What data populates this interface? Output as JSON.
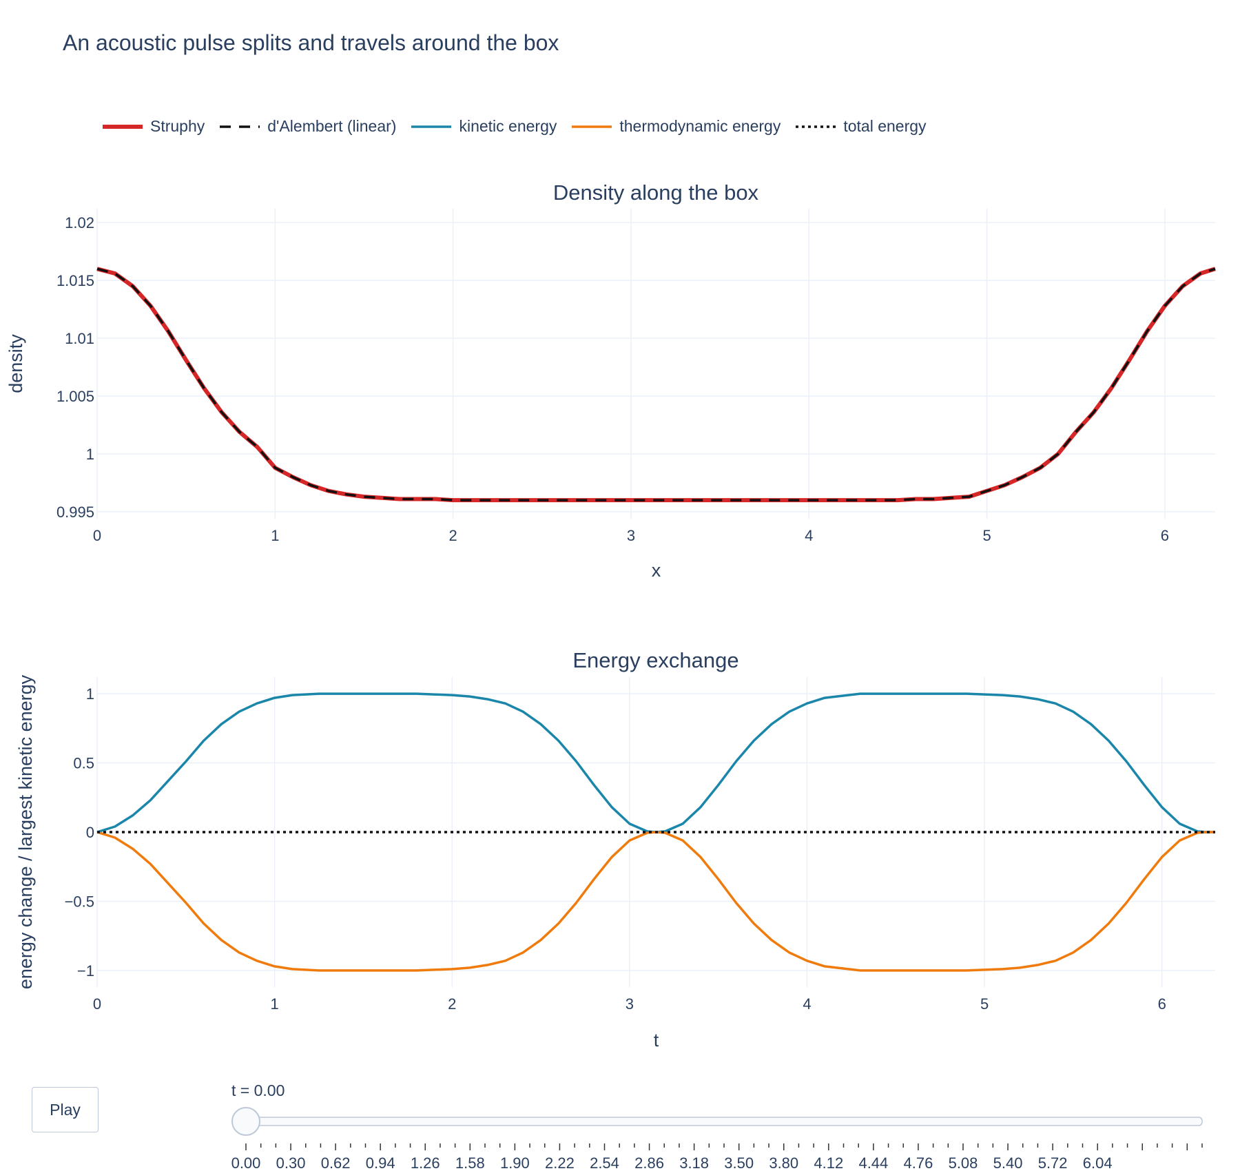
{
  "title": "An acoustic pulse splits and travels around the box",
  "legend": [
    {
      "label": "Struphy",
      "color": "#d62728",
      "dash": "solid"
    },
    {
      "label": "d'Alembert (linear)",
      "color": "#111111",
      "dash": "dash"
    },
    {
      "label": "kinetic energy",
      "color": "#1a86aa",
      "dash": "solid"
    },
    {
      "label": "thermodynamic energy",
      "color": "#f07b0d",
      "dash": "solid"
    },
    {
      "label": "total energy",
      "color": "#111111",
      "dash": "dot"
    }
  ],
  "controls": {
    "play_label": "Play",
    "slider_value": "t = 0.00",
    "slider_position": 0.0,
    "slider_labels": [
      "0.00",
      "0.30",
      "0.62",
      "0.94",
      "1.26",
      "1.58",
      "1.90",
      "2.22",
      "2.54",
      "2.86",
      "3.18",
      "3.50",
      "3.80",
      "4.12",
      "4.44",
      "4.76",
      "5.08",
      "5.40",
      "5.72",
      "6.04"
    ]
  },
  "chart_data": [
    {
      "type": "line",
      "title": "Density along the box",
      "xlabel": "x",
      "ylabel": "density",
      "xlim": [
        0,
        6.283
      ],
      "ylim": [
        0.9944,
        1.0212
      ],
      "xticks": [
        0,
        1,
        2,
        3,
        4,
        5,
        6
      ],
      "xtick_labels": [
        "0",
        "1",
        "2",
        "3",
        "4",
        "5",
        "6"
      ],
      "yticks": [
        0.995,
        1.0,
        1.005,
        1.01,
        1.015,
        1.02
      ],
      "ytick_labels": [
        "0.995",
        "1",
        "1.005",
        "1.01",
        "1.015",
        "1.02"
      ],
      "grid": true,
      "series": [
        {
          "name": "Struphy",
          "color": "#d62728",
          "dash": "solid",
          "x": [
            0,
            0.1,
            0.2,
            0.3,
            0.4,
            0.5,
            0.6,
            0.7,
            0.8,
            0.9,
            1.0,
            1.1,
            1.2,
            1.3,
            1.4,
            1.5,
            1.6,
            1.7,
            1.8,
            1.9,
            2.0,
            2.2,
            2.4,
            2.6,
            2.8,
            3.0,
            3.2,
            3.4,
            3.6,
            3.8,
            4.0,
            4.2,
            4.4,
            4.5,
            4.6,
            4.7,
            4.8,
            4.9,
            5.0,
            5.1,
            5.2,
            5.3,
            5.4,
            5.5,
            5.6,
            5.7,
            5.8,
            5.9,
            6.0,
            6.1,
            6.2,
            6.283
          ],
          "y": [
            1.016,
            1.0156,
            1.0145,
            1.0128,
            1.0106,
            1.0081,
            1.0057,
            1.0036,
            1.0019,
            1.0006,
            0.9988,
            0.998,
            0.9973,
            0.9968,
            0.9965,
            0.9963,
            0.9962,
            0.9961,
            0.9961,
            0.9961,
            0.996,
            0.996,
            0.996,
            0.996,
            0.996,
            0.996,
            0.996,
            0.996,
            0.996,
            0.996,
            0.996,
            0.996,
            0.996,
            0.996,
            0.9961,
            0.9961,
            0.9962,
            0.9963,
            0.9968,
            0.9973,
            0.998,
            0.9988,
            1.0,
            1.0019,
            1.0036,
            1.0057,
            1.0081,
            1.0106,
            1.0128,
            1.0145,
            1.0156,
            1.016
          ]
        },
        {
          "name": "d'Alembert (linear)",
          "color": "#111111",
          "dash": "dash",
          "x": [
            0,
            0.1,
            0.2,
            0.3,
            0.4,
            0.5,
            0.6,
            0.7,
            0.8,
            0.9,
            1.0,
            1.1,
            1.2,
            1.3,
            1.4,
            1.5,
            1.6,
            1.7,
            1.8,
            1.9,
            2.0,
            2.2,
            2.4,
            2.6,
            2.8,
            3.0,
            3.2,
            3.4,
            3.6,
            3.8,
            4.0,
            4.2,
            4.4,
            4.5,
            4.6,
            4.7,
            4.8,
            4.9,
            5.0,
            5.1,
            5.2,
            5.3,
            5.4,
            5.5,
            5.6,
            5.7,
            5.8,
            5.9,
            6.0,
            6.1,
            6.2,
            6.283
          ],
          "y": [
            1.016,
            1.0156,
            1.0145,
            1.0128,
            1.0106,
            1.0081,
            1.0057,
            1.0036,
            1.0019,
            1.0006,
            0.9988,
            0.998,
            0.9973,
            0.9968,
            0.9965,
            0.9963,
            0.9962,
            0.9961,
            0.9961,
            0.9961,
            0.996,
            0.996,
            0.996,
            0.996,
            0.996,
            0.996,
            0.996,
            0.996,
            0.996,
            0.996,
            0.996,
            0.996,
            0.996,
            0.996,
            0.9961,
            0.9961,
            0.9962,
            0.9963,
            0.9968,
            0.9973,
            0.998,
            0.9988,
            1.0,
            1.0019,
            1.0036,
            1.0057,
            1.0081,
            1.0106,
            1.0128,
            1.0145,
            1.0156,
            1.016
          ]
        }
      ]
    },
    {
      "type": "line",
      "title": "Energy exchange",
      "xlabel": "t",
      "ylabel": "energy change / largest kinetic energy",
      "xlim": [
        0,
        6.3
      ],
      "ylim": [
        -1.12,
        1.12
      ],
      "xticks": [
        0,
        1,
        2,
        3,
        4,
        5,
        6
      ],
      "xtick_labels": [
        "0",
        "1",
        "2",
        "3",
        "4",
        "5",
        "6"
      ],
      "yticks": [
        -1,
        -0.5,
        0,
        0.5,
        1
      ],
      "ytick_labels": [
        "−1",
        "−0.5",
        "0",
        "0.5",
        "1"
      ],
      "grid": true,
      "series": [
        {
          "name": "kinetic energy",
          "color": "#1a86aa",
          "dash": "solid",
          "x": [
            0,
            0.1,
            0.2,
            0.3,
            0.4,
            0.5,
            0.6,
            0.7,
            0.8,
            0.9,
            1.0,
            1.1,
            1.25,
            1.5,
            1.8,
            2.0,
            2.1,
            2.2,
            2.3,
            2.4,
            2.5,
            2.6,
            2.7,
            2.8,
            2.9,
            3.0,
            3.1,
            3.15,
            3.2,
            3.3,
            3.4,
            3.5,
            3.6,
            3.7,
            3.8,
            3.9,
            4.0,
            4.1,
            4.3,
            4.6,
            4.9,
            5.1,
            5.2,
            5.3,
            5.4,
            5.5,
            5.6,
            5.7,
            5.8,
            5.9,
            6.0,
            6.1,
            6.2,
            6.25,
            6.3
          ],
          "y": [
            0,
            0.04,
            0.12,
            0.23,
            0.37,
            0.51,
            0.66,
            0.78,
            0.87,
            0.93,
            0.97,
            0.99,
            1.0,
            1.0,
            1.0,
            0.99,
            0.98,
            0.96,
            0.93,
            0.87,
            0.78,
            0.66,
            0.51,
            0.34,
            0.18,
            0.06,
            0.005,
            0.0,
            0.005,
            0.06,
            0.18,
            0.34,
            0.51,
            0.66,
            0.78,
            0.87,
            0.93,
            0.97,
            1.0,
            1.0,
            1.0,
            0.99,
            0.98,
            0.96,
            0.93,
            0.87,
            0.78,
            0.66,
            0.51,
            0.34,
            0.18,
            0.06,
            0.005,
            0.0,
            0.0
          ]
        },
        {
          "name": "thermodynamic energy",
          "color": "#f07b0d",
          "dash": "solid",
          "x": [
            0,
            0.1,
            0.2,
            0.3,
            0.4,
            0.5,
            0.6,
            0.7,
            0.8,
            0.9,
            1.0,
            1.1,
            1.25,
            1.5,
            1.8,
            2.0,
            2.1,
            2.2,
            2.3,
            2.4,
            2.5,
            2.6,
            2.7,
            2.8,
            2.9,
            3.0,
            3.1,
            3.15,
            3.2,
            3.3,
            3.4,
            3.5,
            3.6,
            3.7,
            3.8,
            3.9,
            4.0,
            4.1,
            4.3,
            4.6,
            4.9,
            5.1,
            5.2,
            5.3,
            5.4,
            5.5,
            5.6,
            5.7,
            5.8,
            5.9,
            6.0,
            6.1,
            6.2,
            6.25,
            6.3
          ],
          "y": [
            0,
            -0.04,
            -0.12,
            -0.23,
            -0.37,
            -0.51,
            -0.66,
            -0.78,
            -0.87,
            -0.93,
            -0.97,
            -0.99,
            -1.0,
            -1.0,
            -1.0,
            -0.99,
            -0.98,
            -0.96,
            -0.93,
            -0.87,
            -0.78,
            -0.66,
            -0.51,
            -0.34,
            -0.18,
            -0.06,
            -0.005,
            0.0,
            -0.005,
            -0.06,
            -0.18,
            -0.34,
            -0.51,
            -0.66,
            -0.78,
            -0.87,
            -0.93,
            -0.97,
            -1.0,
            -1.0,
            -1.0,
            -0.99,
            -0.98,
            -0.96,
            -0.93,
            -0.87,
            -0.78,
            -0.66,
            -0.51,
            -0.34,
            -0.18,
            -0.06,
            -0.005,
            0.0,
            0.0
          ]
        },
        {
          "name": "total energy",
          "color": "#111111",
          "dash": "dot",
          "x": [
            0,
            6.3
          ],
          "y": [
            0,
            0
          ]
        }
      ]
    }
  ]
}
